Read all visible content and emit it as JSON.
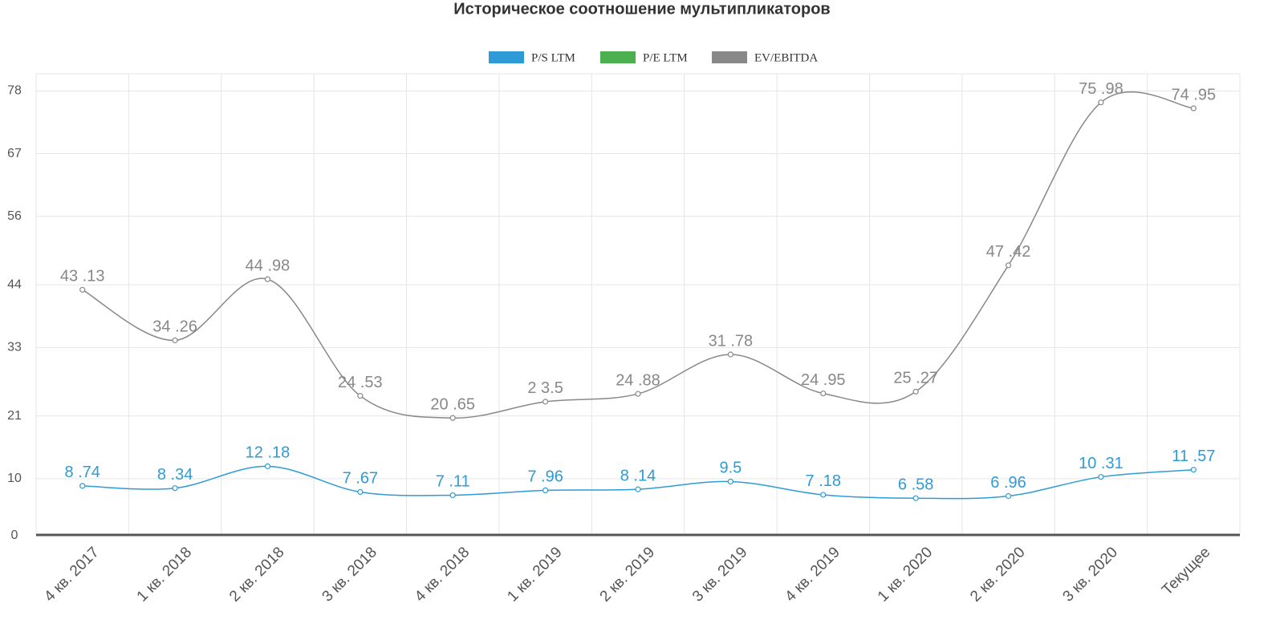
{
  "chart_data": {
    "type": "line",
    "title": "Историческое соотношение мультипликаторов",
    "categories": [
      "4 кв. 2017",
      "1 кв. 2018",
      "2 кв. 2018",
      "3 кв. 2018",
      "4 кв. 2018",
      "1 кв. 2019",
      "2 кв. 2019",
      "3 кв. 2019",
      "4 кв. 2019",
      "1 кв. 2020",
      "2 кв. 2020",
      "3 кв. 2020",
      "Текущее"
    ],
    "series": [
      {
        "name": "P/S LTM",
        "color": "#2e9bd6",
        "values": [
          8.74,
          8.34,
          12.18,
          7.67,
          7.11,
          7.96,
          8.14,
          9.5,
          7.18,
          6.58,
          6.96,
          10.31,
          11.57
        ],
        "value_labels": [
          "8 .74",
          "8 .34",
          "12 .18",
          "7 .67",
          "7 .11",
          "7 .96",
          "8 .14",
          "9.5",
          "7 .18",
          "6 .58",
          "6 .96",
          "10 .31",
          "11 .57"
        ]
      },
      {
        "name": "P/E LTM",
        "color": "#4caf50",
        "values": [
          null,
          null,
          null,
          null,
          null,
          null,
          null,
          null,
          null,
          null,
          null,
          null,
          null
        ]
      },
      {
        "name": "EV/EBITDA",
        "color": "#888888",
        "values": [
          43.13,
          34.26,
          44.98,
          24.53,
          20.65,
          23.5,
          24.88,
          31.78,
          24.95,
          25.27,
          47.42,
          75.98,
          74.95
        ],
        "value_labels": [
          "43 .13",
          "34 .26",
          "44 .98",
          "24 .53",
          "20 .65",
          "2 3.5",
          "24 .88",
          "31 .78",
          "24 .95",
          "25 .27",
          "47 .42",
          "75 .98",
          "74 .95"
        ]
      }
    ],
    "ylim": [
      0,
      81
    ],
    "yticks": [
      0,
      10,
      21,
      33,
      44,
      56,
      67,
      78
    ],
    "grid": true,
    "legend": "top"
  }
}
